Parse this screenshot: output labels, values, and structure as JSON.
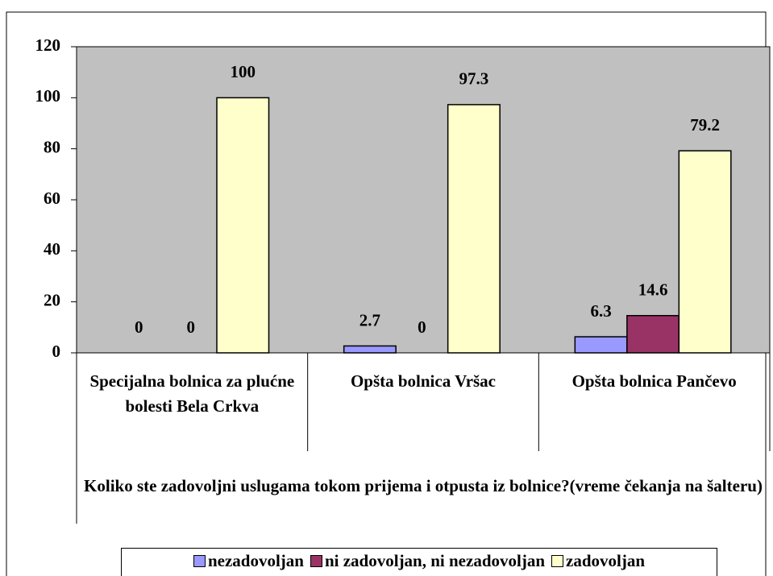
{
  "chart_data": {
    "type": "bar",
    "x_label": "Koliko ste zadovoljni uslugama tokom prijema i otpusta iz bolnice?(vreme čekanja na šalteru)",
    "categories": [
      "Specijalna bolnica za plućne bolesti Bela Crkva",
      "Opšta bolnica Vršac",
      "Opšta bolnica Pančevo"
    ],
    "series": [
      {
        "name": "nezadovoljan",
        "color": "#9999ff",
        "values": [
          0,
          2.7,
          6.3
        ]
      },
      {
        "name": "ni zadovoljan, ni nezadovoljan",
        "color": "#993366",
        "values": [
          0,
          0,
          14.6
        ]
      },
      {
        "name": "zadovoljan",
        "color": "#ffffcc",
        "values": [
          100,
          97.3,
          79.2
        ]
      }
    ],
    "ylim": [
      0,
      120
    ],
    "yticks": [
      0,
      20,
      40,
      60,
      80,
      100,
      120
    ],
    "grid": false,
    "plot_background": "#c0c0c0",
    "legend": "bottom"
  }
}
